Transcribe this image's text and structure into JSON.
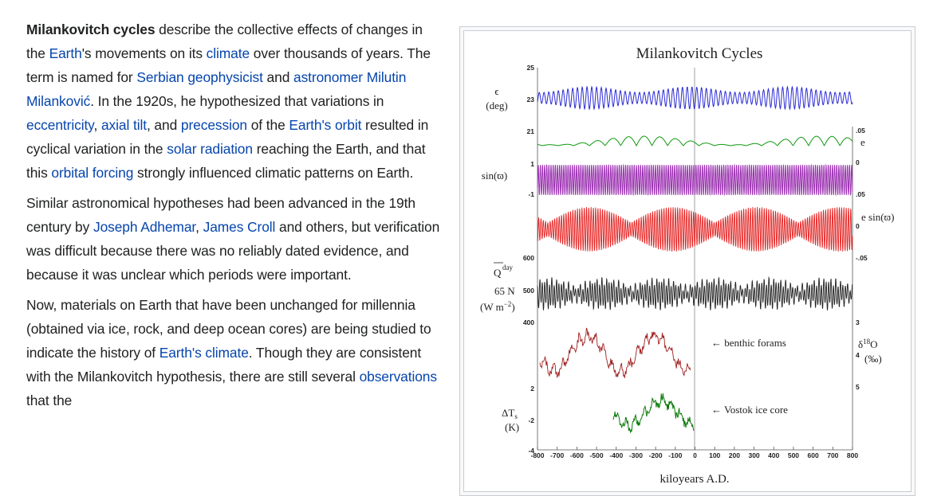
{
  "article": {
    "paragraphs": [
      [
        {
          "t": "Milankovitch cycles",
          "bold": true
        },
        {
          "t": " describe the collective effects of changes in the "
        },
        {
          "t": "Earth",
          "link": true
        },
        {
          "t": "'s movements on its "
        },
        {
          "t": "climate",
          "link": true
        },
        {
          "t": " over thousands of years. The term is named for "
        },
        {
          "t": "Serbian",
          "link": true
        },
        {
          "t": " "
        },
        {
          "t": "geophysicist",
          "link": true
        },
        {
          "t": " and "
        },
        {
          "t": "astronomer",
          "link": true
        },
        {
          "t": " "
        },
        {
          "t": "Milutin Milanković",
          "link": true
        },
        {
          "t": ". In the 1920s, he hypothesized that variations in "
        },
        {
          "t": "eccentricity",
          "link": true
        },
        {
          "t": ", "
        },
        {
          "t": "axial tilt",
          "link": true
        },
        {
          "t": ", and "
        },
        {
          "t": "precession",
          "link": true
        },
        {
          "t": " of the "
        },
        {
          "t": "Earth's orbit",
          "link": true
        },
        {
          "t": " resulted in cyclical variation in the "
        },
        {
          "t": "solar radiation",
          "link": true
        },
        {
          "t": " reaching the Earth, and that this "
        },
        {
          "t": "orbital forcing",
          "link": true
        },
        {
          "t": " strongly influenced climatic patterns on Earth."
        }
      ],
      [
        {
          "t": "Similar astronomical hypotheses had been advanced in the 19th century by "
        },
        {
          "t": "Joseph Adhemar",
          "link": true
        },
        {
          "t": ", "
        },
        {
          "t": "James Croll",
          "link": true
        },
        {
          "t": " and others, but verification was difficult because there was no reliably dated evidence, and because it was unclear which periods were important."
        }
      ],
      [
        {
          "t": "Now, materials on Earth that have been unchanged for millennia (obtained via ice, rock, and deep ocean cores) are being studied to indicate the history of "
        },
        {
          "t": "Earth's climate",
          "link": true
        },
        {
          "t": ". Though they are consistent with the Milankovitch hypothesis, there are still several "
        },
        {
          "t": "observations",
          "link": true
        },
        {
          "t": " that the"
        }
      ]
    ]
  },
  "figure": {
    "title": "Milankovitch Cycles",
    "xlabel": "kiloyears A.D.",
    "x_ticks": [
      "-800",
      "-700",
      "-600",
      "-500",
      "-400",
      "-300",
      "-200",
      "-100",
      "0",
      "100",
      "200",
      "300",
      "400",
      "500",
      "600",
      "700",
      "800"
    ],
    "labels": {
      "obliquity_sym": "ϵ",
      "obliquity_unit": "(deg)",
      "precession_sym": "sin(ϖ)",
      "ecc_sym": "e",
      "esin_sym": "e sin(ϖ)",
      "insolation_sym": "Q",
      "insolation_sup": "day",
      "insolation_lat": "65 N",
      "insolation_unit": "(W m",
      "insolation_unit_exp": "−2",
      "insolation_unit_close": ")",
      "d18o_sym": "δ",
      "d18o_sup": "18",
      "d18o_o": "O",
      "d18o_unit": "(‰)",
      "dts_sym": "ΔT",
      "dts_sub": "s",
      "dts_unit": "(K)",
      "benthic": "← benthic forams",
      "vostok": "← Vostok ice core"
    },
    "left_ticks": {
      "obliquity": [
        "25",
        "23",
        "21"
      ],
      "precession": [
        "1",
        "-1"
      ],
      "insolation": [
        "600",
        "500",
        "400"
      ],
      "temperature": [
        "2",
        "-2",
        "-4"
      ]
    },
    "right_ticks": {
      "ecc": [
        ".05",
        "0"
      ],
      "esin": [
        ".05",
        "0",
        "-.05"
      ],
      "d18o": [
        "3",
        "4",
        "5"
      ]
    },
    "colors": {
      "obliquity": "#2b2bd6",
      "ecc": "#119911",
      "precession": "#9a2fb0",
      "esin": "#e52020",
      "insolation": "#222222",
      "benthic": "#a02020",
      "vostok": "#0a7a0a"
    }
  }
}
